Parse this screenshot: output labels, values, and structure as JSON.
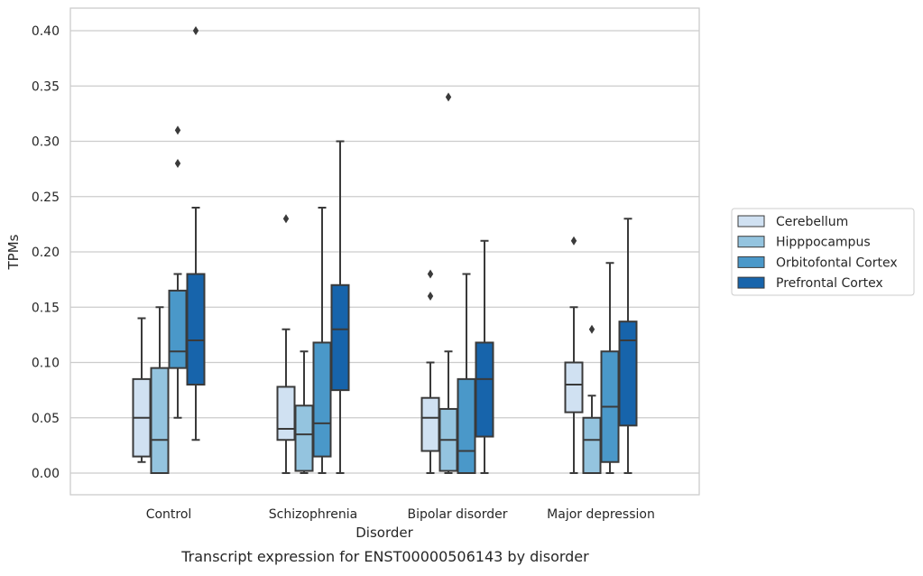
{
  "chart_data": {
    "type": "boxplot",
    "title": "",
    "caption": "Transcript expression for ENST00000506143 by disorder",
    "xlabel": "Disorder",
    "ylabel": "TPMs",
    "ylim": [
      -0.02,
      0.42
    ],
    "yticks": [
      "0.00",
      "0.05",
      "0.10",
      "0.15",
      "0.20",
      "0.25",
      "0.30",
      "0.35",
      "0.40"
    ],
    "grid": true,
    "legend_position": "right",
    "categories": [
      "Control",
      "Schizophrenia",
      "Bipolar disorder",
      "Major depression"
    ],
    "series": [
      {
        "name": "Cerebellum",
        "color": "#d0e1f2",
        "boxes": [
          {
            "whislo": 0.01,
            "q1": 0.015,
            "med": 0.05,
            "q3": 0.085,
            "whishi": 0.14,
            "fliers": []
          },
          {
            "whislo": 0.0,
            "q1": 0.03,
            "med": 0.04,
            "q3": 0.078,
            "whishi": 0.13,
            "fliers": [
              0.23
            ]
          },
          {
            "whislo": 0.0,
            "q1": 0.02,
            "med": 0.05,
            "q3": 0.068,
            "whishi": 0.1,
            "fliers": [
              0.16,
              0.18
            ]
          },
          {
            "whislo": 0.0,
            "q1": 0.055,
            "med": 0.08,
            "q3": 0.1,
            "whishi": 0.15,
            "fliers": [
              0.21
            ]
          }
        ]
      },
      {
        "name": "Hipppocampus",
        "color": "#94c4df",
        "boxes": [
          {
            "whislo": 0.0,
            "q1": 0.0,
            "med": 0.03,
            "q3": 0.095,
            "whishi": 0.15,
            "fliers": []
          },
          {
            "whislo": 0.0,
            "q1": 0.002,
            "med": 0.035,
            "q3": 0.061,
            "whishi": 0.11,
            "fliers": []
          },
          {
            "whislo": 0.0,
            "q1": 0.002,
            "med": 0.03,
            "q3": 0.058,
            "whishi": 0.11,
            "fliers": [
              0.34
            ]
          },
          {
            "whislo": 0.0,
            "q1": 0.0,
            "med": 0.03,
            "q3": 0.05,
            "whishi": 0.07,
            "fliers": [
              0.13
            ]
          }
        ]
      },
      {
        "name": "Orbitofontal Cortex",
        "color": "#4a98c9",
        "boxes": [
          {
            "whislo": 0.05,
            "q1": 0.095,
            "med": 0.11,
            "q3": 0.165,
            "whishi": 0.18,
            "fliers": [
              0.28,
              0.31
            ]
          },
          {
            "whislo": 0.0,
            "q1": 0.015,
            "med": 0.045,
            "q3": 0.118,
            "whishi": 0.24,
            "fliers": []
          },
          {
            "whislo": 0.0,
            "q1": 0.0,
            "med": 0.02,
            "q3": 0.085,
            "whishi": 0.18,
            "fliers": []
          },
          {
            "whislo": 0.0,
            "q1": 0.01,
            "med": 0.06,
            "q3": 0.11,
            "whishi": 0.19,
            "fliers": []
          }
        ]
      },
      {
        "name": "Prefrontal Cortex",
        "color": "#1764ab",
        "boxes": [
          {
            "whislo": 0.03,
            "q1": 0.08,
            "med": 0.12,
            "q3": 0.18,
            "whishi": 0.24,
            "fliers": [
              0.4
            ]
          },
          {
            "whislo": 0.0,
            "q1": 0.075,
            "med": 0.13,
            "q3": 0.17,
            "whishi": 0.3,
            "fliers": []
          },
          {
            "whislo": 0.0,
            "q1": 0.033,
            "med": 0.085,
            "q3": 0.118,
            "whishi": 0.21,
            "fliers": []
          },
          {
            "whislo": 0.0,
            "q1": 0.043,
            "med": 0.12,
            "q3": 0.137,
            "whishi": 0.23,
            "fliers": []
          }
        ]
      }
    ]
  }
}
